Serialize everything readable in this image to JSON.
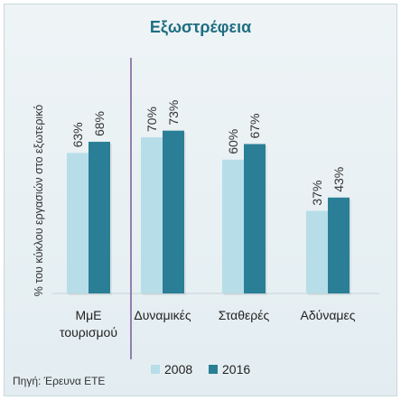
{
  "chart_data": {
    "type": "bar",
    "title": "Εξωστρέφεια",
    "ylabel": "% του κύκλου εργασιών στο εξωτερικό",
    "xlabel": "",
    "ylim": [
      0,
      100
    ],
    "grid": false,
    "legend_position": "bottom",
    "categories": [
      "ΜμΕ τουρισμού",
      "Δυναμικές",
      "Σταθερές",
      "Αδύναμες"
    ],
    "category_lines": [
      [
        "ΜμΕ",
        "τουρισμού"
      ],
      [
        "Δυναμικές"
      ],
      [
        "Σταθερές"
      ],
      [
        "Αδύναμες"
      ]
    ],
    "series": [
      {
        "name": "2008",
        "color": "#b7dde8",
        "values": [
          63,
          70,
          60,
          37
        ],
        "labels": [
          "63%",
          "70%",
          "60%",
          "37%"
        ]
      },
      {
        "name": "2016",
        "color": "#2a7f96",
        "values": [
          68,
          73,
          67,
          43
        ],
        "labels": [
          "68%",
          "73%",
          "67%",
          "43%"
        ]
      }
    ],
    "separator_after_category": 0,
    "separator_color": "#7a5a96"
  },
  "source": "Πηγή: Έρευνα ΕΤΕ"
}
